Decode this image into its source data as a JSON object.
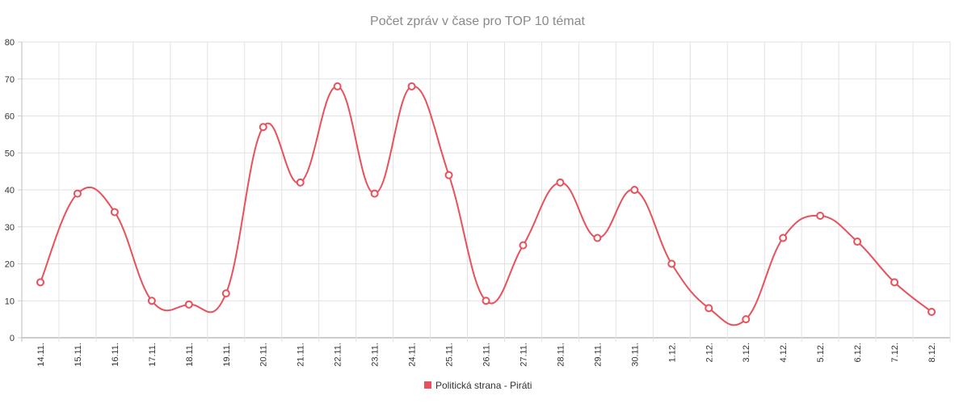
{
  "chart_data": {
    "type": "line",
    "title": "Počet zpráv v čase pro TOP 10 témat",
    "xlabel": "",
    "ylabel": "",
    "categories": [
      "14.11.",
      "15.11.",
      "16.11.",
      "17.11.",
      "18.11.",
      "19.11.",
      "20.11.",
      "21.11.",
      "22.11.",
      "23.11.",
      "24.11.",
      "25.11.",
      "26.11.",
      "27.11.",
      "28.11.",
      "29.11.",
      "30.11.",
      "1.12.",
      "2.12.",
      "3.12.",
      "4.12.",
      "5.12.",
      "6.12.",
      "7.12.",
      "8.12."
    ],
    "series": [
      {
        "name": "Politická strana - Piráti",
        "color": "#e8505b",
        "values": [
          15,
          39,
          34,
          10,
          9,
          12,
          57,
          42,
          68,
          39,
          68,
          44,
          10,
          25,
          42,
          27,
          40,
          20,
          8,
          5,
          27,
          33,
          26,
          15,
          7
        ]
      }
    ],
    "ylim": [
      0,
      80
    ],
    "yticks": [
      0,
      10,
      20,
      30,
      40,
      50,
      60,
      70,
      80
    ],
    "grid": true,
    "legend": "bottom-center",
    "line_smoothing": "curved"
  }
}
